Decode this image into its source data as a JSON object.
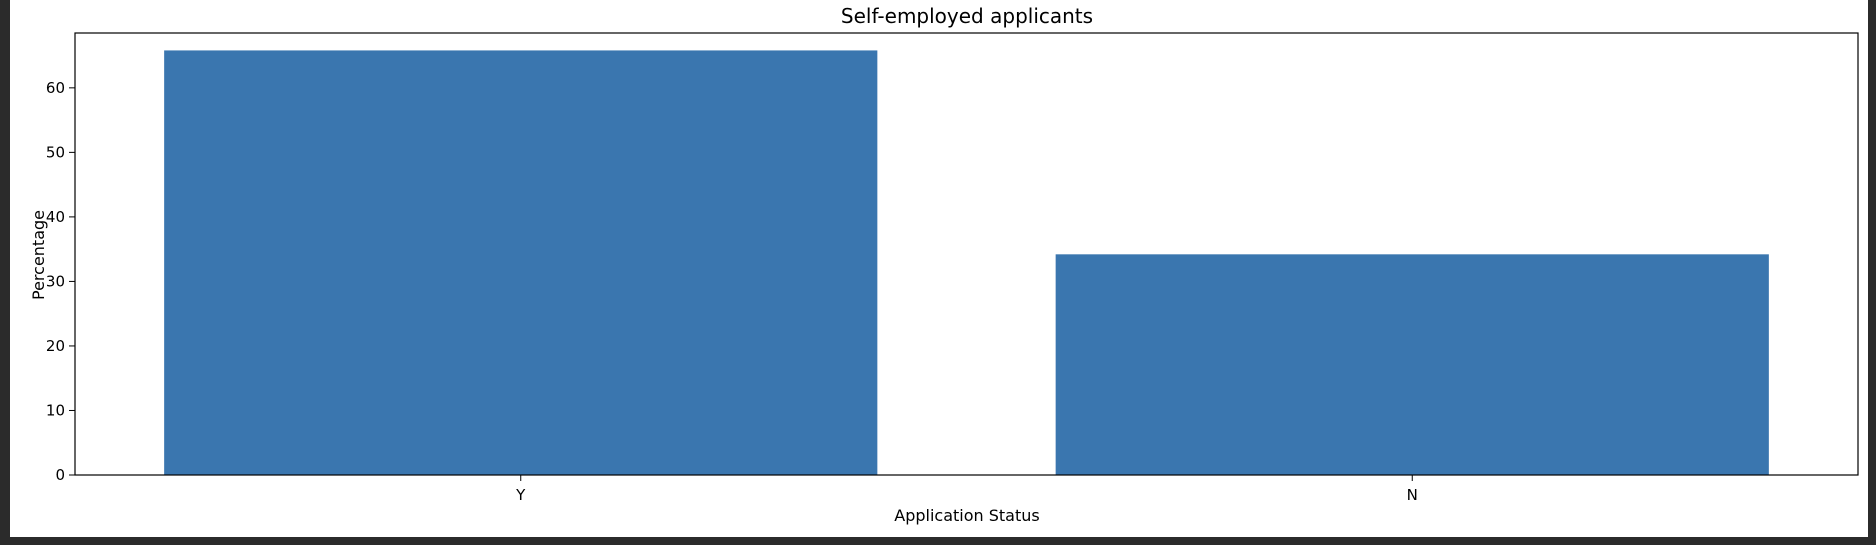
{
  "chart_data": {
    "type": "bar",
    "title": "Self-employed applicants",
    "xlabel": "Application Status",
    "ylabel": "Percentage",
    "categories": [
      "Y",
      "N"
    ],
    "values": [
      65.8,
      34.2
    ],
    "ylim": [
      0,
      68.5
    ],
    "yticks": [
      0,
      10,
      20,
      30,
      40,
      50,
      60
    ],
    "bar_color": "#3a76af",
    "grid": false,
    "legend": "none"
  }
}
